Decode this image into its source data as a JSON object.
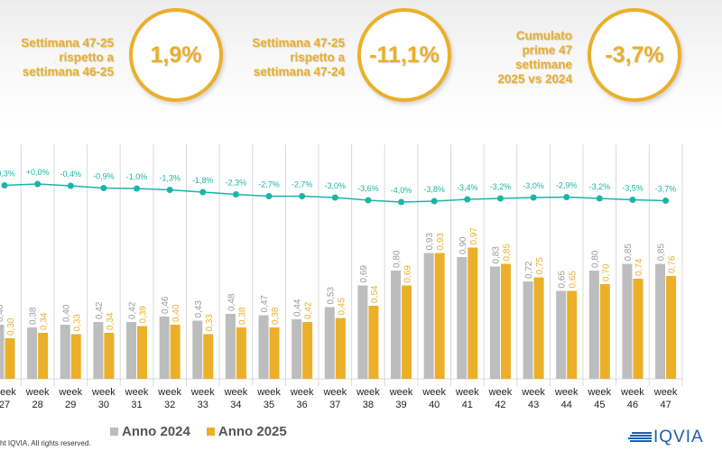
{
  "kpis": [
    {
      "label_lines": [
        "Settimana 47-25",
        "rispetto a",
        "settimana 46-25"
      ],
      "value": "1,9%"
    },
    {
      "label_lines": [
        "Settimana 47-25",
        "rispetto a",
        "settimana 47-24"
      ],
      "value": "-11,1%"
    },
    {
      "label_lines": [
        "Cumulato",
        "prime 47",
        "settimane",
        "2025 vs 2024"
      ],
      "value": "-3,7%"
    }
  ],
  "colors": {
    "accent": "#EBAF2A",
    "anno_2024": "#BDBDBD",
    "anno_2025": "#EBAF2A",
    "line": "#1BB5A6",
    "grid": "#D9D9D9"
  },
  "legend": {
    "anno_2024": "Anno 2024",
    "anno_2025": "Anno 2025"
  },
  "footer": {
    "copyright": "ht IQVIA. All rights reserved.",
    "logo": "IQVIA"
  },
  "chart_data": {
    "type": "bar",
    "title": "",
    "xlabel": "",
    "ylabel": "",
    "categories": [
      "week 27",
      "week 28",
      "week 29",
      "week 30",
      "week 31",
      "week 32",
      "week 33",
      "week 34",
      "week 35",
      "week 36",
      "week 37",
      "week 38",
      "week 39",
      "week 40",
      "week 41",
      "week 42",
      "week 43",
      "week 44",
      "week 45",
      "week 46",
      "week 47"
    ],
    "series": [
      {
        "name": "Anno 2024",
        "type": "bar",
        "values": [
          0.4,
          0.38,
          0.4,
          0.42,
          0.42,
          0.46,
          0.43,
          0.48,
          0.47,
          0.44,
          0.53,
          0.69,
          0.8,
          0.93,
          0.9,
          0.83,
          0.72,
          0.65,
          0.8,
          0.85,
          0.85
        ],
        "labels": [
          "0,40",
          "0,38",
          "0,40",
          "0,42",
          "0,42",
          "0,46",
          "0,43",
          "0,48",
          "0,47",
          "0,44",
          "0,53",
          "0,69",
          "0,80",
          "0,93",
          "0,90",
          "0,83",
          "0,72",
          "0,65",
          "0,80",
          "0,85",
          "0,85"
        ]
      },
      {
        "name": "Anno 2025",
        "type": "bar",
        "values": [
          0.3,
          0.34,
          0.33,
          0.34,
          0.39,
          0.4,
          0.33,
          0.38,
          0.38,
          0.42,
          0.45,
          0.54,
          0.69,
          0.93,
          0.97,
          0.85,
          0.75,
          0.65,
          0.7,
          0.74,
          0.76
        ],
        "labels": [
          "0,30",
          "0,34",
          "0,33",
          "0,34",
          "0,39",
          "0,40",
          "0,33",
          "0,38",
          "0,38",
          "0,42",
          "0,45",
          "0,54",
          "0,69",
          "0,93",
          "0,97",
          "0,85",
          "0,75",
          "0,65",
          "0,70",
          "0,74",
          "0,76"
        ]
      },
      {
        "name": "Cumulato % var",
        "type": "line",
        "values": [
          -0.3,
          0.0,
          -0.4,
          -0.9,
          -1.0,
          -1.3,
          -1.8,
          -2.3,
          -2.7,
          -2.7,
          -3.0,
          -3.6,
          -4.0,
          -3.8,
          -3.4,
          -3.2,
          -3.0,
          -2.9,
          -3.2,
          -3.5,
          -3.7
        ],
        "labels": [
          "-0,3%",
          "+0,0%",
          "-0,4%",
          "-0,9%",
          "-1,0%",
          "-1,3%",
          "-1,8%",
          "-2,3%",
          "-2,7%",
          "-2,7%",
          "-3,0%",
          "-3,6%",
          "-4,0%",
          "-3,8%",
          "-3,4%",
          "-3,2%",
          "-3,0%",
          "-2,9%",
          "-3,2%",
          "-3,5%",
          "-3,7%"
        ]
      }
    ],
    "ylim": [
      0,
      1.0
    ],
    "grid": "vertical",
    "legend": "bottom"
  }
}
